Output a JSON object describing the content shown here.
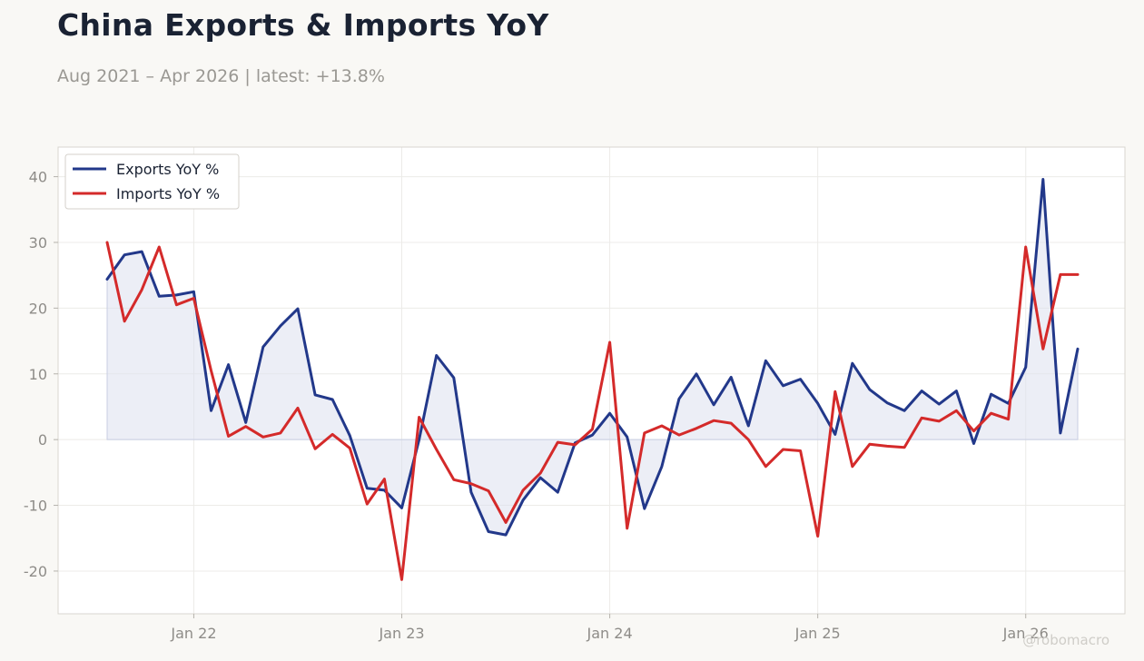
{
  "header": {
    "title": "China Exports & Imports YoY",
    "subtitle": "Aug 2021 – Apr 2026 | latest: +13.8%"
  },
  "watermark": "@robomacro",
  "colors": {
    "exports": "#22388a",
    "imports": "#d42a2a",
    "fill": "#dde0ee",
    "grid": "#ecebe8",
    "frame": "#d9d6d0"
  },
  "chart_data": {
    "type": "line",
    "title": "China Exports & Imports YoY",
    "xlabel": "",
    "ylabel": "",
    "x_start": "2021-08",
    "x_end": "2026-04",
    "xticks": [
      {
        "label": "Jan 22",
        "date": "2022-01"
      },
      {
        "label": "Jan 23",
        "date": "2023-01"
      },
      {
        "label": "Jan 24",
        "date": "2024-01"
      },
      {
        "label": "Jan 25",
        "date": "2025-01"
      },
      {
        "label": "Jan 26",
        "date": "2026-01"
      }
    ],
    "yticks": [
      -20,
      -10,
      0,
      10,
      20,
      30,
      40
    ],
    "ylim": [
      -26.5,
      44.5
    ],
    "grid": true,
    "legend": "top-left",
    "series": [
      {
        "name": "Exports YoY %",
        "color": "#22388a",
        "fill_to_zero": true,
        "points": [
          [
            "2021-08",
            24.4
          ],
          [
            "2021-09",
            28.1
          ],
          [
            "2021-10",
            28.6
          ],
          [
            "2021-11",
            21.8
          ],
          [
            "2021-12",
            22.0
          ],
          [
            "2022-01",
            22.5
          ],
          [
            "2022-02",
            4.4
          ],
          [
            "2022-03",
            11.4
          ],
          [
            "2022-04",
            2.6
          ],
          [
            "2022-05",
            14.1
          ],
          [
            "2022-06",
            17.3
          ],
          [
            "2022-07",
            19.9
          ],
          [
            "2022-08",
            6.8
          ],
          [
            "2022-09",
            6.1
          ],
          [
            "2022-10",
            0.6
          ],
          [
            "2022-11",
            -7.4
          ],
          [
            "2022-12",
            -7.7
          ],
          [
            "2023-01",
            -10.4
          ],
          [
            "2023-02",
            0.0
          ],
          [
            "2023-03",
            12.8
          ],
          [
            "2023-04",
            9.4
          ],
          [
            "2023-05",
            -8.0
          ],
          [
            "2023-06",
            -14.0
          ],
          [
            "2023-07",
            -14.5
          ],
          [
            "2023-08",
            -9.2
          ],
          [
            "2023-09",
            -5.8
          ],
          [
            "2023-10",
            -8.0
          ],
          [
            "2023-11",
            -0.5
          ],
          [
            "2023-12",
            0.7
          ],
          [
            "2024-01",
            4.0
          ],
          [
            "2024-02",
            0.4
          ],
          [
            "2024-03",
            -10.5
          ],
          [
            "2024-04",
            -4.1
          ],
          [
            "2024-05",
            6.2
          ],
          [
            "2024-06",
            10.0
          ],
          [
            "2024-07",
            5.3
          ],
          [
            "2024-08",
            9.5
          ],
          [
            "2024-09",
            2.1
          ],
          [
            "2024-10",
            12.0
          ],
          [
            "2024-11",
            8.2
          ],
          [
            "2024-12",
            9.2
          ],
          [
            "2025-01",
            5.5
          ],
          [
            "2025-02",
            0.8
          ],
          [
            "2025-03",
            11.6
          ],
          [
            "2025-04",
            7.6
          ],
          [
            "2025-05",
            5.6
          ],
          [
            "2025-06",
            4.4
          ],
          [
            "2025-07",
            7.4
          ],
          [
            "2025-08",
            5.4
          ],
          [
            "2025-09",
            7.4
          ],
          [
            "2025-10",
            -0.6
          ],
          [
            "2025-11",
            6.9
          ],
          [
            "2025-12",
            5.5
          ],
          [
            "2026-01",
            11.0
          ],
          [
            "2026-02",
            39.6
          ],
          [
            "2026-03",
            1.0
          ],
          [
            "2026-04",
            13.8
          ]
        ]
      },
      {
        "name": "Imports YoY %",
        "color": "#d42a2a",
        "fill_to_zero": false,
        "points": [
          [
            "2021-08",
            30.0
          ],
          [
            "2021-09",
            18.0
          ],
          [
            "2021-10",
            22.8
          ],
          [
            "2021-11",
            29.3
          ],
          [
            "2021-12",
            20.5
          ],
          [
            "2022-01",
            21.5
          ],
          [
            "2022-02",
            10.5
          ],
          [
            "2022-03",
            0.5
          ],
          [
            "2022-04",
            2.0
          ],
          [
            "2022-05",
            0.4
          ],
          [
            "2022-06",
            1.0
          ],
          [
            "2022-07",
            4.8
          ],
          [
            "2022-08",
            -1.4
          ],
          [
            "2022-09",
            0.8
          ],
          [
            "2022-10",
            -1.3
          ],
          [
            "2022-11",
            -9.8
          ],
          [
            "2022-12",
            -6.0
          ],
          [
            "2023-01",
            -21.3
          ],
          [
            "2023-02",
            3.4
          ],
          [
            "2023-03",
            -1.5
          ],
          [
            "2023-04",
            -6.1
          ],
          [
            "2023-05",
            -6.7
          ],
          [
            "2023-06",
            -7.8
          ],
          [
            "2023-07",
            -12.6
          ],
          [
            "2023-08",
            -7.7
          ],
          [
            "2023-09",
            -5.1
          ],
          [
            "2023-10",
            -0.4
          ],
          [
            "2023-11",
            -0.8
          ],
          [
            "2023-12",
            1.6
          ],
          [
            "2024-01",
            14.8
          ],
          [
            "2024-02",
            -13.5
          ],
          [
            "2024-03",
            1.0
          ],
          [
            "2024-04",
            2.1
          ],
          [
            "2024-05",
            0.7
          ],
          [
            "2024-06",
            1.7
          ],
          [
            "2024-07",
            2.9
          ],
          [
            "2024-08",
            2.5
          ],
          [
            "2024-09",
            0.0
          ],
          [
            "2024-10",
            -4.1
          ],
          [
            "2024-11",
            -1.5
          ],
          [
            "2024-12",
            -1.7
          ],
          [
            "2025-01",
            -14.7
          ],
          [
            "2025-02",
            7.3
          ],
          [
            "2025-03",
            -4.1
          ],
          [
            "2025-04",
            -0.7
          ],
          [
            "2025-05",
            -1.0
          ],
          [
            "2025-06",
            -1.2
          ],
          [
            "2025-07",
            3.3
          ],
          [
            "2025-08",
            2.8
          ],
          [
            "2025-09",
            4.4
          ],
          [
            "2025-10",
            1.3
          ],
          [
            "2025-11",
            4.0
          ],
          [
            "2025-12",
            3.1
          ],
          [
            "2026-01",
            29.3
          ],
          [
            "2026-02",
            13.8
          ],
          [
            "2026-03",
            25.1
          ],
          [
            "2026-04",
            25.1
          ]
        ]
      }
    ]
  }
}
